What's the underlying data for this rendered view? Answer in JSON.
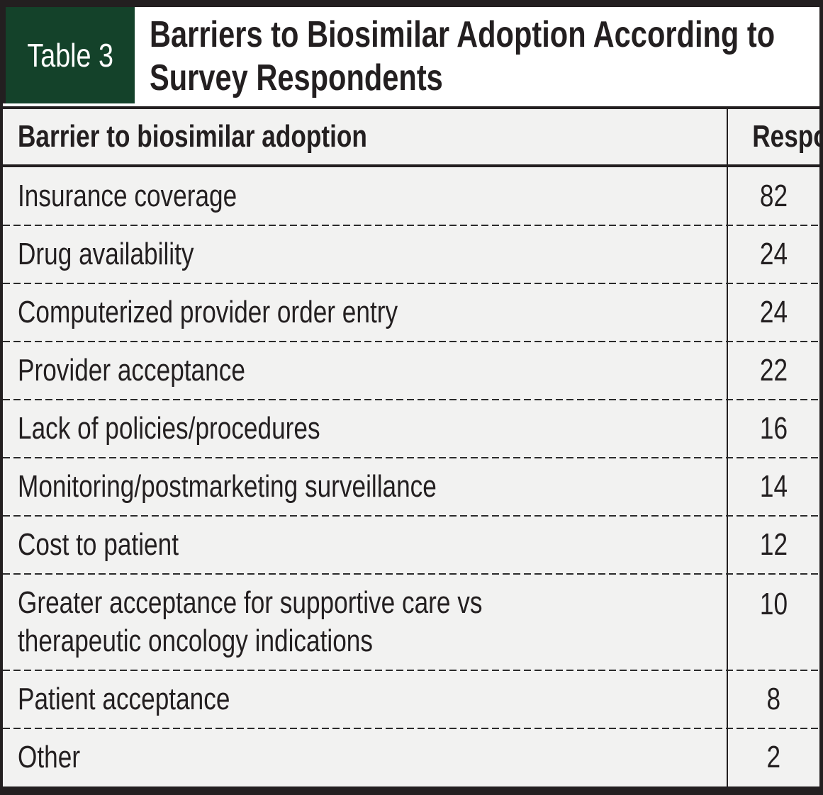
{
  "chart_data": {
    "type": "table",
    "table_label": "Table 3",
    "title": "Barriers to Biosimilar Adoption According to Survey Respondents",
    "title_lines": [
      "Barriers to Biosimilar Adoption According to",
      "Survey Respondents"
    ],
    "columns": [
      "Barrier to biosimilar adoption",
      "Respondents, %"
    ],
    "categories": [
      "Insurance coverage",
      "Drug availability",
      "Computerized provider order entry",
      "Provider acceptance",
      "Lack of policies/procedures",
      "Monitoring/postmarketing surveillance",
      "Cost to patient",
      "Greater acceptance for supportive care vs therapeutic oncology indications",
      "Patient acceptance",
      "Other"
    ],
    "values": [
      82,
      24,
      24,
      22,
      16,
      14,
      12,
      10,
      8,
      2
    ]
  },
  "colors": {
    "badge_green": "#14422a",
    "badge_text": "#ffffff",
    "row_background": "#f2f2f1",
    "ink": "#231f20"
  }
}
